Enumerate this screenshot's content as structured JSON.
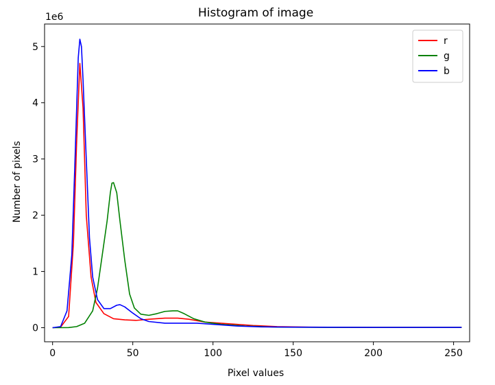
{
  "chart_data": {
    "type": "line",
    "title": "Histogram of image",
    "xlabel": "Pixel values",
    "ylabel": "Number of pixels",
    "y_scale_label": "1e6",
    "xlim": [
      -5,
      260
    ],
    "ylim": [
      -0.25,
      5.4
    ],
    "x_ticks": [
      0,
      50,
      100,
      150,
      200,
      250
    ],
    "y_ticks": [
      0,
      1,
      2,
      3,
      4,
      5
    ],
    "grid": false,
    "legend_position": "top-right",
    "series": [
      {
        "name": "r",
        "color": "#ff0000",
        "points": [
          [
            0,
            0
          ],
          [
            5,
            0.01
          ],
          [
            10,
            0.2
          ],
          [
            13,
            1.5
          ],
          [
            15,
            3.3
          ],
          [
            17,
            4.7
          ],
          [
            19,
            3.9
          ],
          [
            21,
            2.0
          ],
          [
            24,
            0.9
          ],
          [
            27,
            0.45
          ],
          [
            32,
            0.25
          ],
          [
            38,
            0.16
          ],
          [
            45,
            0.14
          ],
          [
            52,
            0.13
          ],
          [
            60,
            0.15
          ],
          [
            70,
            0.17
          ],
          [
            78,
            0.17
          ],
          [
            85,
            0.15
          ],
          [
            95,
            0.1
          ],
          [
            110,
            0.07
          ],
          [
            125,
            0.04
          ],
          [
            140,
            0.02
          ],
          [
            160,
            0.01
          ],
          [
            200,
            0.005
          ],
          [
            255,
            0.005
          ]
        ]
      },
      {
        "name": "g",
        "color": "#008000",
        "points": [
          [
            0,
            0
          ],
          [
            10,
            0.003
          ],
          [
            15,
            0.02
          ],
          [
            20,
            0.08
          ],
          [
            25,
            0.3
          ],
          [
            28,
            0.7
          ],
          [
            31,
            1.3
          ],
          [
            34,
            1.9
          ],
          [
            36,
            2.4
          ],
          [
            37,
            2.57
          ],
          [
            38,
            2.58
          ],
          [
            40,
            2.4
          ],
          [
            42,
            1.9
          ],
          [
            45,
            1.2
          ],
          [
            48,
            0.6
          ],
          [
            51,
            0.35
          ],
          [
            55,
            0.24
          ],
          [
            60,
            0.22
          ],
          [
            65,
            0.25
          ],
          [
            70,
            0.29
          ],
          [
            75,
            0.3
          ],
          [
            78,
            0.3
          ],
          [
            82,
            0.25
          ],
          [
            88,
            0.16
          ],
          [
            95,
            0.1
          ],
          [
            105,
            0.06
          ],
          [
            120,
            0.03
          ],
          [
            140,
            0.01
          ],
          [
            170,
            0.005
          ],
          [
            255,
            0.005
          ]
        ]
      },
      {
        "name": "b",
        "color": "#0000ff",
        "points": [
          [
            0,
            0
          ],
          [
            5,
            0.02
          ],
          [
            9,
            0.3
          ],
          [
            12,
            1.3
          ],
          [
            14,
            3.0
          ],
          [
            16,
            4.8
          ],
          [
            17,
            5.13
          ],
          [
            18,
            5.0
          ],
          [
            19,
            4.4
          ],
          [
            21,
            3.0
          ],
          [
            23,
            1.6
          ],
          [
            25,
            0.9
          ],
          [
            28,
            0.5
          ],
          [
            32,
            0.34
          ],
          [
            36,
            0.34
          ],
          [
            40,
            0.4
          ],
          [
            42,
            0.41
          ],
          [
            45,
            0.37
          ],
          [
            50,
            0.26
          ],
          [
            55,
            0.16
          ],
          [
            60,
            0.11
          ],
          [
            70,
            0.08
          ],
          [
            80,
            0.08
          ],
          [
            90,
            0.08
          ],
          [
            100,
            0.06
          ],
          [
            115,
            0.03
          ],
          [
            130,
            0.015
          ],
          [
            150,
            0.01
          ],
          [
            200,
            0.005
          ],
          [
            255,
            0.005
          ]
        ]
      }
    ]
  }
}
